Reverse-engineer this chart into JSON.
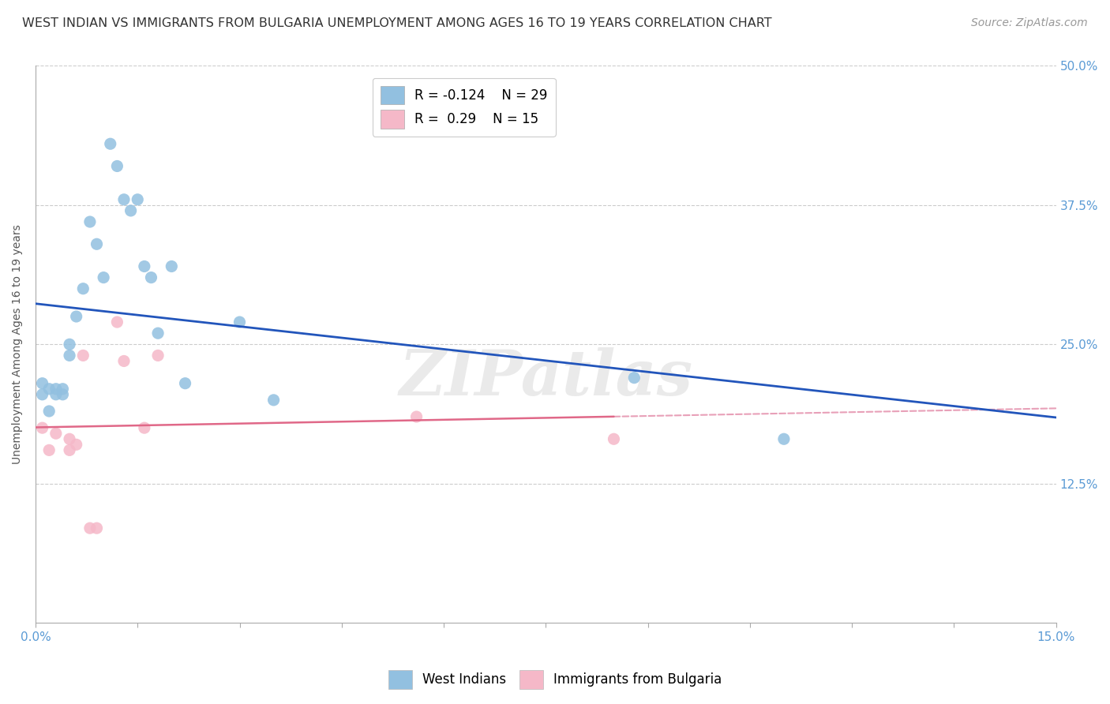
{
  "title": "WEST INDIAN VS IMMIGRANTS FROM BULGARIA UNEMPLOYMENT AMONG AGES 16 TO 19 YEARS CORRELATION CHART",
  "source": "Source: ZipAtlas.com",
  "ylabel": "Unemployment Among Ages 16 to 19 years",
  "xlim": [
    0.0,
    0.15
  ],
  "ylim": [
    0.0,
    0.5
  ],
  "west_indian_x": [
    0.001,
    0.001,
    0.002,
    0.002,
    0.003,
    0.003,
    0.004,
    0.004,
    0.005,
    0.005,
    0.006,
    0.007,
    0.008,
    0.009,
    0.01,
    0.011,
    0.012,
    0.013,
    0.014,
    0.015,
    0.016,
    0.017,
    0.018,
    0.02,
    0.022,
    0.03,
    0.035,
    0.088,
    0.11
  ],
  "west_indian_y": [
    0.215,
    0.205,
    0.19,
    0.21,
    0.205,
    0.21,
    0.205,
    0.21,
    0.25,
    0.24,
    0.275,
    0.3,
    0.36,
    0.34,
    0.31,
    0.43,
    0.41,
    0.38,
    0.37,
    0.38,
    0.32,
    0.31,
    0.26,
    0.32,
    0.215,
    0.27,
    0.2,
    0.22,
    0.165
  ],
  "bulgaria_x": [
    0.001,
    0.002,
    0.003,
    0.005,
    0.005,
    0.006,
    0.007,
    0.008,
    0.009,
    0.012,
    0.013,
    0.016,
    0.018,
    0.056,
    0.085
  ],
  "bulgaria_y": [
    0.175,
    0.155,
    0.17,
    0.155,
    0.165,
    0.16,
    0.24,
    0.085,
    0.085,
    0.27,
    0.235,
    0.175,
    0.24,
    0.185,
    0.165
  ],
  "west_indian_R": -0.124,
  "west_indian_N": 29,
  "bulgaria_R": 0.29,
  "bulgaria_N": 15,
  "blue_color": "#92C0E0",
  "pink_color": "#F5B8C8",
  "blue_line_color": "#2255BB",
  "pink_line_color": "#E06888",
  "pink_dash_color": "#E8A0B8",
  "background_color": "#FFFFFF",
  "title_fontsize": 11.5,
  "source_fontsize": 10,
  "label_fontsize": 10,
  "tick_fontsize": 11,
  "marker_size": 120,
  "watermark": "ZIPatlas"
}
